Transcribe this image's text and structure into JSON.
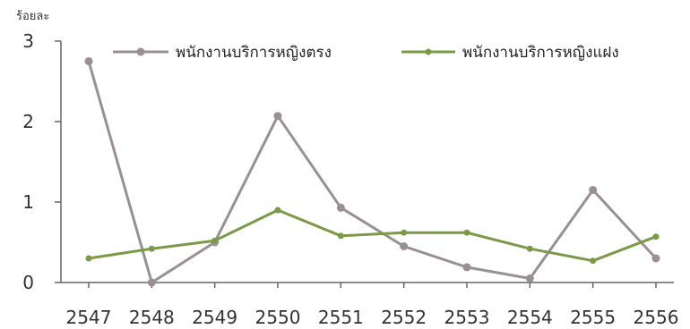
{
  "chart_data": {
    "type": "line",
    "y_unit_label": "ร้อยละ",
    "categories": [
      "2547",
      "2548",
      "2549",
      "2550",
      "2551",
      "2552",
      "2553",
      "2554",
      "2555",
      "2556"
    ],
    "ylim": [
      0,
      3
    ],
    "yticks": [
      "0",
      "1",
      "2",
      "3"
    ],
    "grid": false,
    "legend_position": "top",
    "series": [
      {
        "name": "พนักงานบริการหญิงตรง",
        "color": "#9a8f92",
        "values": [
          2.75,
          0.0,
          0.5,
          2.07,
          0.93,
          0.45,
          0.19,
          0.05,
          1.15,
          0.3
        ]
      },
      {
        "name": "พนักงานบริการหญิงแฝง",
        "color": "#7a9a48",
        "values": [
          0.3,
          0.42,
          0.52,
          0.9,
          0.58,
          0.62,
          0.62,
          0.42,
          0.27,
          0.57
        ]
      }
    ]
  }
}
